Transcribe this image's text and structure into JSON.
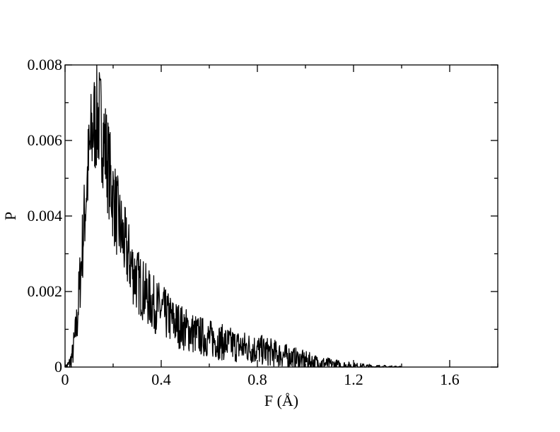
{
  "chart_data": {
    "type": "line",
    "xlabel": "F (Å)",
    "ylabel": "P",
    "xlim": [
      0,
      1.8
    ],
    "ylim": [
      0,
      0.008
    ],
    "x_ticks": [
      0,
      0.4,
      0.8,
      1.2,
      1.6
    ],
    "x_tick_labels": [
      "0",
      "0.4",
      "0.8",
      "1.2",
      "1.6"
    ],
    "y_ticks": [
      0,
      0.002,
      0.004,
      0.006,
      0.008
    ],
    "y_tick_labels": [
      "0",
      "0.002",
      "0.004",
      "0.006",
      "0.008"
    ],
    "grid": false,
    "legend": "none",
    "line_color": "#000000",
    "series": [
      {
        "x": [
          0.0,
          0.01,
          0.02,
          0.03,
          0.04,
          0.05,
          0.06,
          0.07,
          0.08,
          0.09,
          0.1,
          0.11,
          0.12,
          0.13,
          0.14,
          0.15,
          0.16,
          0.17,
          0.18,
          0.19,
          0.2,
          0.22,
          0.24,
          0.26,
          0.28,
          0.3,
          0.32,
          0.35,
          0.38,
          0.4,
          0.45,
          0.5,
          0.55,
          0.6,
          0.65,
          0.7,
          0.75,
          0.8,
          0.85,
          0.9,
          0.95,
          1.0,
          1.05,
          1.1,
          1.15,
          1.2,
          1.25,
          1.3,
          1.35,
          1.4
        ],
        "y": [
          0.0,
          3e-05,
          0.0001,
          0.0003,
          0.0007,
          0.0012,
          0.0021,
          0.003,
          0.0039,
          0.0048,
          0.0055,
          0.0061,
          0.0064,
          0.0066,
          0.0066,
          0.0064,
          0.0061,
          0.0057,
          0.0053,
          0.0049,
          0.0045,
          0.0039,
          0.0034,
          0.003,
          0.0026,
          0.0023,
          0.0021,
          0.0018,
          0.0016,
          0.0015,
          0.0012,
          0.001,
          0.00085,
          0.00075,
          0.00066,
          0.00058,
          0.00052,
          0.00047,
          0.0004,
          0.00032,
          0.00024,
          0.00017,
          0.00011,
          7e-05,
          4e-05,
          2e-05,
          1e-05,
          4e-06,
          1e-06,
          0.0
        ]
      }
    ]
  }
}
